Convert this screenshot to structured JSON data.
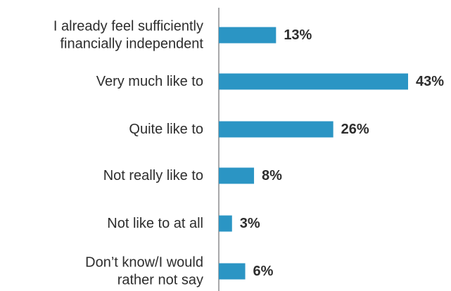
{
  "chart_data": {
    "type": "bar",
    "orientation": "horizontal",
    "categories": [
      [
        "I already feel sufficiently",
        "financially independent"
      ],
      [
        "Very much like to"
      ],
      [
        "Quite like to"
      ],
      [
        "Not really like to"
      ],
      [
        "Not like to at all"
      ],
      [
        "Don’t know/I would",
        "rather not say"
      ]
    ],
    "values": [
      13,
      43,
      26,
      8,
      3,
      6
    ],
    "value_labels": [
      "13%",
      "43%",
      "26%",
      "8%",
      "3%",
      "6%"
    ],
    "xlim": [
      0,
      43
    ],
    "grid": false,
    "legend": "none",
    "colors": {
      "bar": "#2b95c4",
      "axis": "#6d6e71",
      "category_text": "#2d2d2d",
      "value_text": "#2d2d2d"
    }
  }
}
